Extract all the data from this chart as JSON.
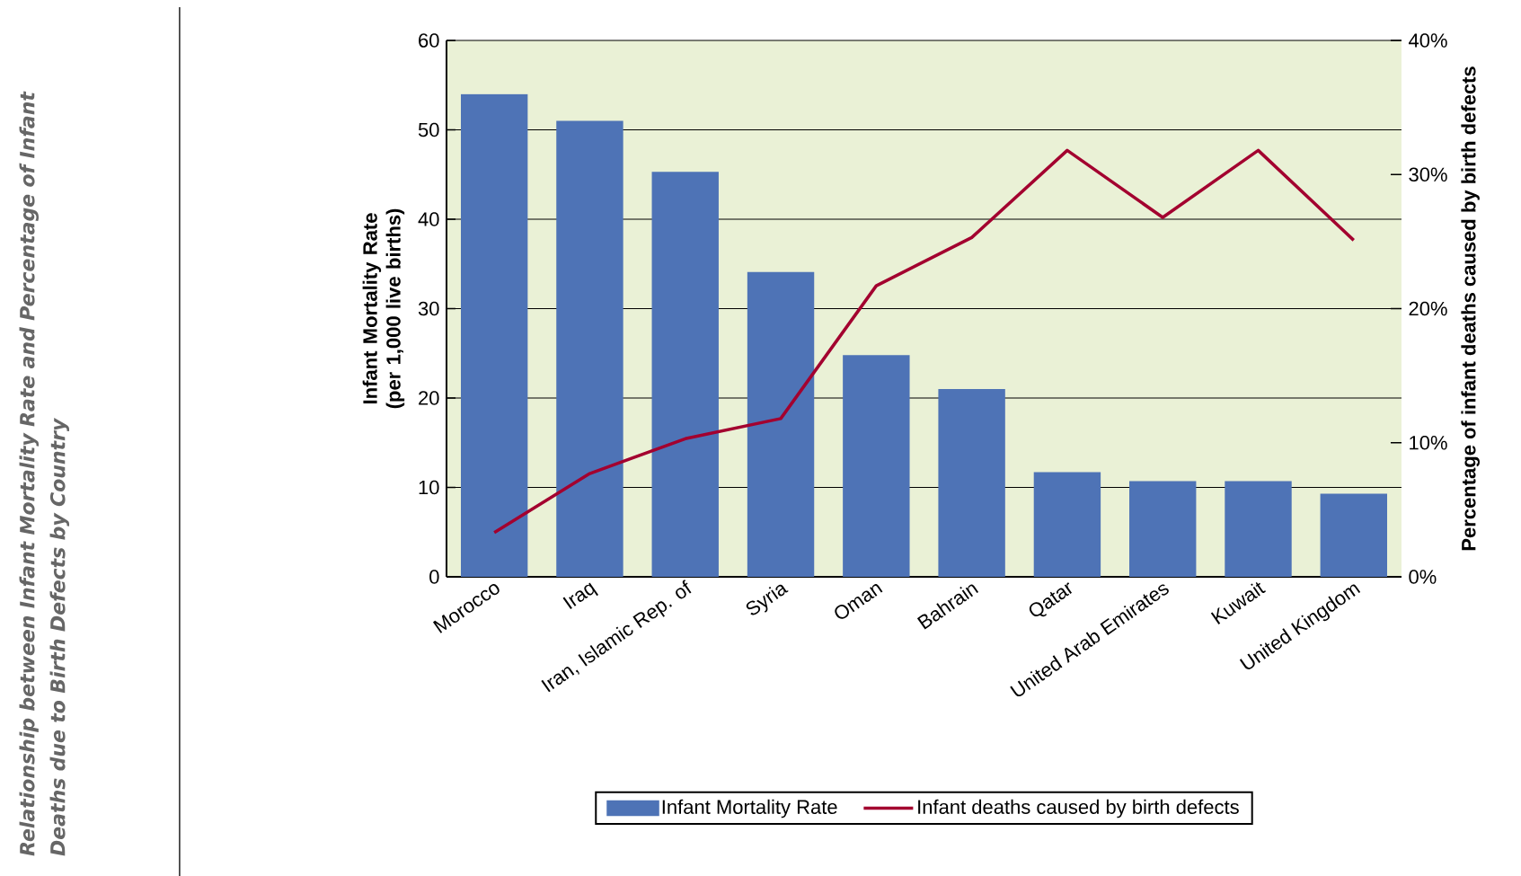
{
  "chart_data": {
    "type": "bar",
    "title": "Relationship between Infant Mortality Rate and Percentage of Infant Deaths due to Birth Defects by Country",
    "ylabel": "Infant Mortality Rate (per 1,000 live births)",
    "y2label": "Percentage of infant deaths caused by birth defects",
    "categories": [
      "Morocco",
      "Iraq",
      "Iran, Islamic Rep. of",
      "Syria",
      "Oman",
      "Bahrain",
      "Qatar",
      "United Arab Emirates",
      "Kuwait",
      "United Kingdom"
    ],
    "series": [
      {
        "name": "Infant Mortality Rate",
        "color": "#4e73b6",
        "values": [
          54,
          51,
          45.3,
          34.1,
          24.8,
          21,
          11.7,
          10.7,
          10.7,
          9.3
        ]
      },
      {
        "name": "Infant deaths caused by birth defects",
        "type": "line",
        "axis": "y2",
        "color": "#a3002f",
        "values": [
          3.3,
          7.7,
          10.3,
          11.8,
          21.7,
          25.3,
          31.8,
          26.8,
          31.8,
          25.1
        ]
      }
    ],
    "ylim": [
      0,
      60
    ],
    "yticks": [
      0,
      10,
      20,
      30,
      40,
      50,
      60
    ],
    "y2lim": [
      0,
      40
    ],
    "y2ticks": [
      {
        "value": 0,
        "label": "0%"
      },
      {
        "value": 10,
        "label": "10%"
      },
      {
        "value": 20,
        "label": "20%"
      },
      {
        "value": 30,
        "label": "30%"
      },
      {
        "value": 40,
        "label": "40%"
      }
    ],
    "grid": "y",
    "legend": "bottom",
    "marker": "none",
    "line_style": "solid"
  }
}
